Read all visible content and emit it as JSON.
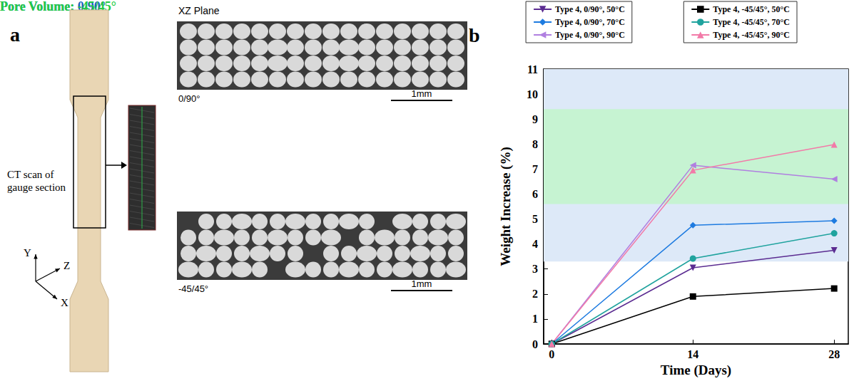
{
  "panel_a": {
    "letter": "a",
    "specimen_label": "CT scan of gauge section",
    "axes": [
      "Y",
      "Z",
      "X"
    ],
    "plane_title": "XZ Plane",
    "scans": [
      {
        "label": "0/90°",
        "scale_bar": "1mm"
      },
      {
        "label": "-45/45°",
        "scale_bar": "1mm"
      }
    ]
  },
  "chart_data": {
    "type": "line",
    "letter": "b",
    "x_label": "Time (Days)",
    "y_label": "Weight Increase (%)",
    "x": [
      0,
      14,
      28
    ],
    "xlim": [
      -0.8,
      29.4
    ],
    "xticks": [
      0,
      14,
      28
    ],
    "ylim": [
      0,
      11
    ],
    "yticks": [
      0,
      1,
      2,
      3,
      4,
      5,
      6,
      7,
      8,
      9,
      10,
      11
    ],
    "grid": false,
    "legend": "top-right",
    "bands": [
      {
        "label": "Pore Volume: 0/90°",
        "range": [
          3.3,
          11
        ],
        "color": "#dde9f8"
      },
      {
        "label": "Pore Volume: -45/45°",
        "range": [
          5.6,
          9.4
        ],
        "color": "#c6f3d2"
      }
    ],
    "series": [
      {
        "name": "Type 4, 0/90°, 50°C",
        "color": "#5b2c91",
        "marker": "triangle-down",
        "values": [
          0,
          3.05,
          3.75
        ]
      },
      {
        "name": "Type 4, 0/90°, 70°C",
        "color": "#1e7be0",
        "marker": "diamond",
        "values": [
          0,
          4.75,
          4.93
        ]
      },
      {
        "name": "Type 4, 0/90°, 90°C",
        "color": "#b07fe0",
        "marker": "triangle-left",
        "values": [
          0,
          7.15,
          6.6
        ]
      },
      {
        "name": "Type 4, -45/45°, 50°C",
        "color": "#000000",
        "marker": "square",
        "values": [
          0,
          1.9,
          2.22
        ]
      },
      {
        "name": "Type 4, -45/45°, 70°C",
        "color": "#20a39e",
        "marker": "circle",
        "values": [
          0,
          3.42,
          4.43
        ]
      },
      {
        "name": "Type 4, -45/45°, 90°C",
        "color": "#f27aa8",
        "marker": "triangle",
        "values": [
          0,
          6.95,
          7.98
        ]
      }
    ]
  }
}
